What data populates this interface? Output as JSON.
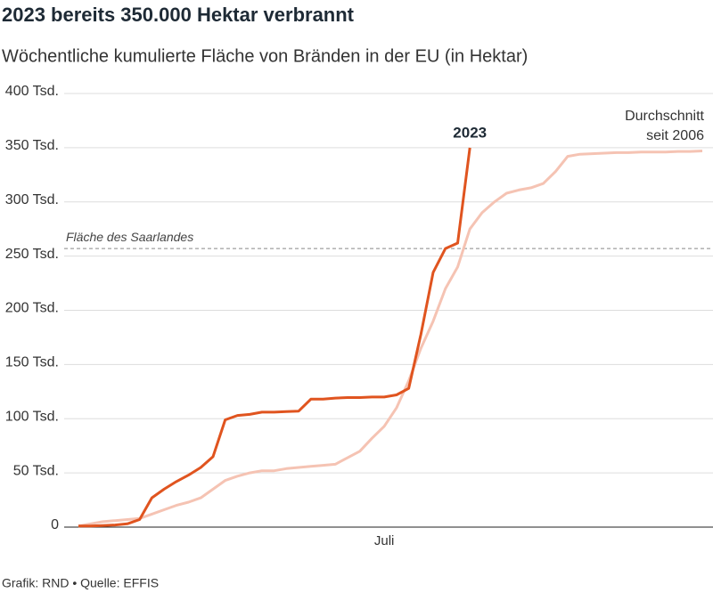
{
  "chart_data": {
    "type": "line",
    "title": "2023 bereits 350.000 Hektar verbrannt",
    "subtitle": "Wöchentliche kumulierte Fläche von Bränden in der EU (in Hektar)",
    "footer": "Grafik: RND • Quelle: EFFIS",
    "categories": [
      null,
      null,
      null,
      null,
      null,
      null,
      null,
      null,
      null,
      null,
      null,
      null,
      null,
      null,
      null,
      null,
      null,
      null,
      null,
      null,
      null,
      null,
      null,
      null,
      null,
      "Juli",
      null,
      null,
      null,
      null,
      null,
      null,
      null,
      null,
      null,
      null,
      null,
      null,
      null,
      null,
      null,
      null,
      null,
      null,
      null,
      null,
      null,
      null,
      null,
      null,
      null,
      null
    ],
    "series": [
      {
        "name": "2023",
        "color": "#e0541f",
        "values": [
          1000,
          1000,
          1500,
          2000,
          3000,
          7000,
          27000,
          35000,
          42000,
          48000,
          55000,
          65000,
          99000,
          103000,
          104000,
          106000,
          106000,
          106500,
          107000,
          118000,
          118000,
          119000,
          119500,
          119500,
          120000,
          120000,
          122000,
          128000,
          178000,
          235000,
          257000,
          262000,
          350000,
          null,
          null,
          null,
          null,
          null,
          null,
          null,
          null,
          null,
          null,
          null,
          null,
          null,
          null,
          null,
          null,
          null,
          null,
          null
        ]
      },
      {
        "name": "Durchschnitt seit 2006",
        "color": "#f5c3b3",
        "values": [
          1000,
          3000,
          5000,
          6000,
          7000,
          8000,
          12000,
          16000,
          20000,
          23000,
          27000,
          35000,
          43000,
          47000,
          50000,
          52000,
          52000,
          54000,
          55000,
          56000,
          57000,
          58000,
          64000,
          70000,
          82000,
          93000,
          110000,
          135000,
          165000,
          190000,
          220000,
          240000,
          275000,
          290000,
          300000,
          308000,
          311000,
          313000,
          317000,
          328000,
          342000,
          344000,
          344500,
          345000,
          345500,
          345500,
          346000,
          346000,
          346000,
          346500,
          346500,
          347000
        ]
      }
    ],
    "reference_line": {
      "value": 257000,
      "label": "Fläche des Saarlandes"
    },
    "ylim": [
      0,
      400000
    ],
    "yticks": [
      0,
      {
        "value": 50000,
        "label": "50 Tsd."
      },
      {
        "value": 100000,
        "label": "100 Tsd."
      },
      {
        "value": 150000,
        "label": "150 Tsd."
      },
      {
        "value": 200000,
        "label": "200 Tsd."
      },
      {
        "value": 250000,
        "label": "250 Tsd."
      },
      {
        "value": 300000,
        "label": "300 Tsd."
      },
      {
        "value": 350000,
        "label": "350 Tsd."
      },
      {
        "value": 400000,
        "label": "400 Tsd."
      }
    ],
    "grid": true
  }
}
